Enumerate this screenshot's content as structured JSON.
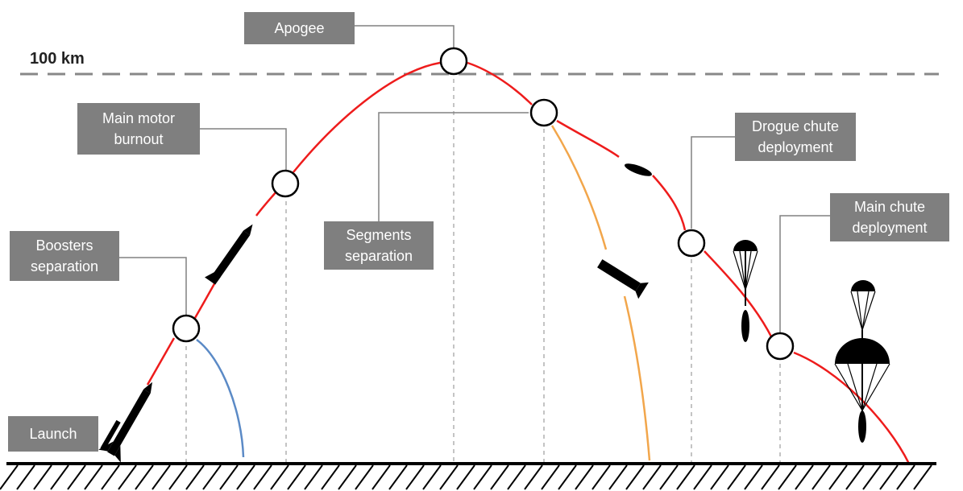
{
  "altitude_line": {
    "label": "100 km"
  },
  "events": {
    "launch": "Launch",
    "boosters_separation": "Boosters\nseparation",
    "main_motor_burnout": "Main motor\nburnout",
    "apogee": "Apogee",
    "segments_separation": "Segments\nseparation",
    "drogue_chute_deployment": "Drogue chute\ndeployment",
    "main_chute_deployment": "Main chute\ndeployment"
  },
  "colors": {
    "label_bg": "#7f7f7f",
    "main_trajectory": "#ee1c1c",
    "booster_trajectory": "#5b8ac6",
    "segment_trajectory": "#f2a64b",
    "ground": "#000000",
    "guides": "#a0a0a0"
  }
}
